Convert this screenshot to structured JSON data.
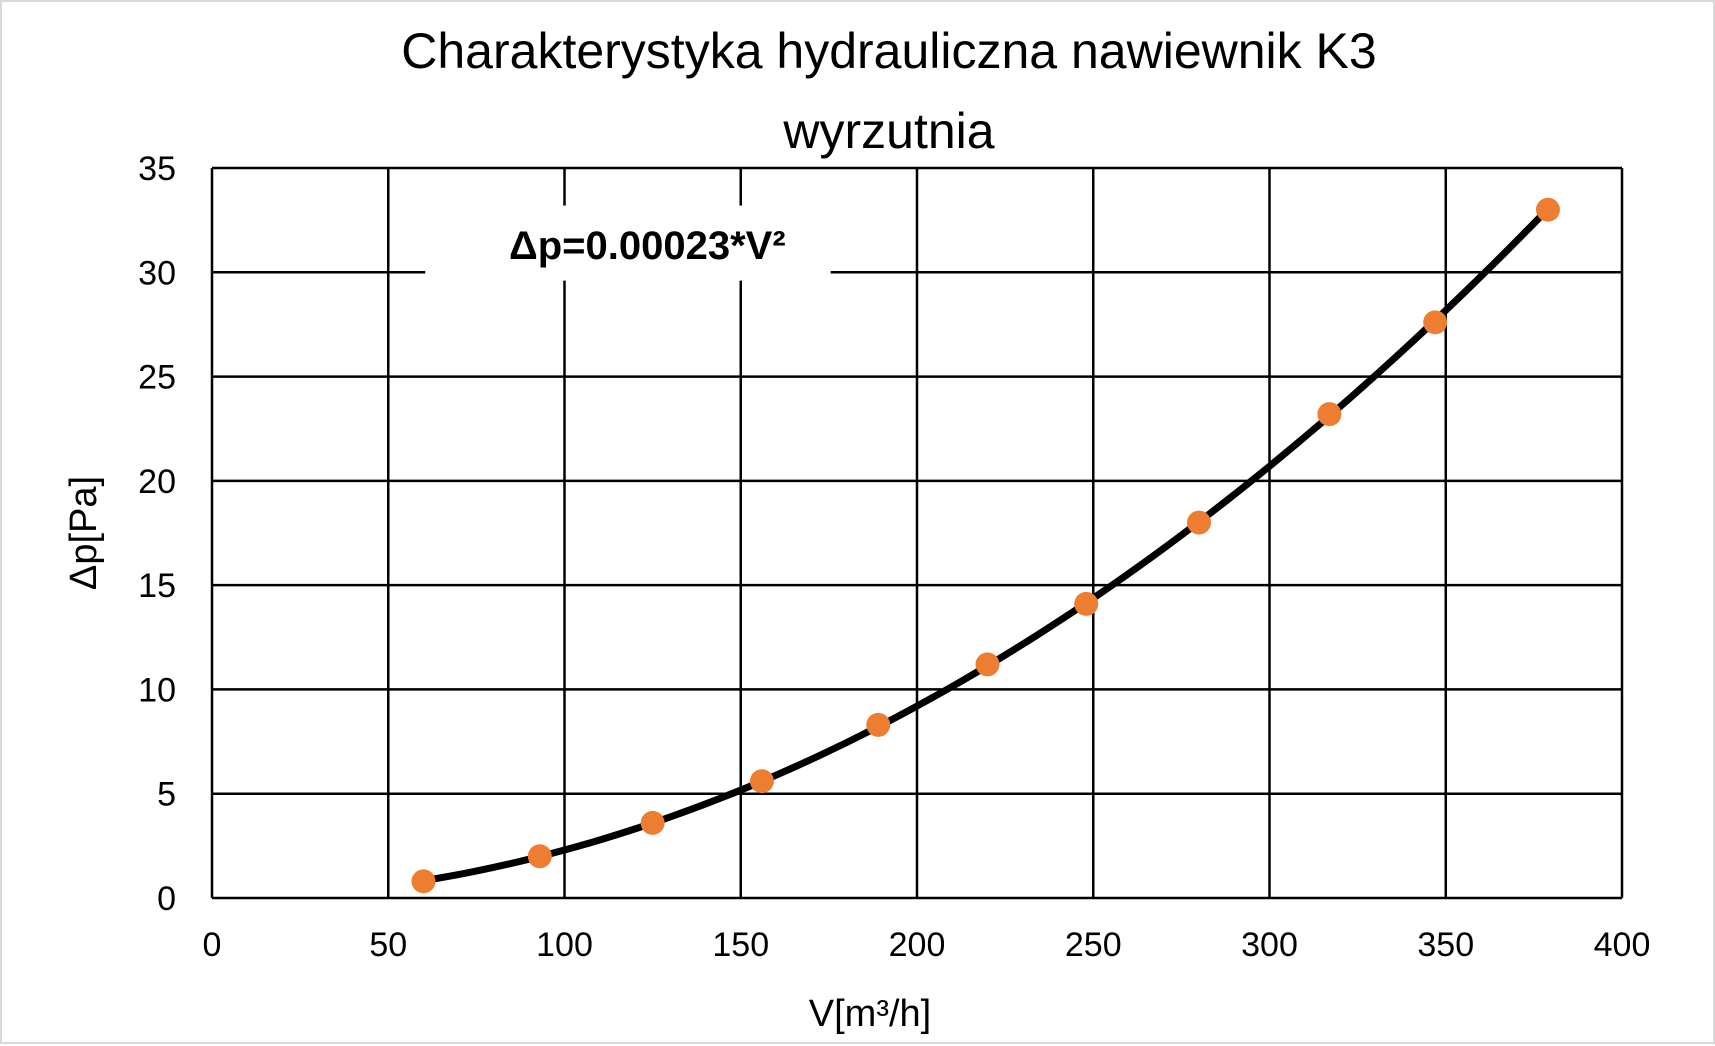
{
  "chart_data": {
    "type": "scatter",
    "title_lines": [
      "Charakterystyka hydrauliczna nawiewnik K3",
      "wyrzutnia"
    ],
    "xlabel": "V[m³/h]",
    "ylabel": "Δp[Pa]",
    "xlim": [
      0,
      400
    ],
    "ylim": [
      0,
      35
    ],
    "x_ticks": [
      0,
      50,
      100,
      150,
      200,
      250,
      300,
      350,
      400
    ],
    "y_ticks": [
      0,
      5,
      10,
      15,
      20,
      25,
      30,
      35
    ],
    "x_tick_labels": [
      "0",
      "50",
      "100",
      "150",
      "200",
      "250",
      "300",
      "350",
      "400"
    ],
    "y_tick_labels": [
      "0",
      "5",
      "10",
      "15",
      "20",
      "25",
      "30",
      "35"
    ],
    "grid": true,
    "legend": false,
    "annotation": "Δp=0.00023*V²",
    "trendline": {
      "type": "power",
      "coefficient": 0.00023,
      "exponent": 2
    },
    "series": [
      {
        "x": [
          60,
          93,
          125,
          156,
          189,
          220,
          248,
          280,
          317,
          347,
          379
        ],
        "y": [
          0.8,
          2.0,
          3.6,
          5.6,
          8.3,
          11.2,
          14.1,
          18.0,
          23.2,
          27.6,
          33.0
        ]
      }
    ],
    "colors": {
      "marker": "#ED7D31",
      "line": "#000000",
      "grid": "#000000",
      "background": "#FFFFFF",
      "border": "#D9D9D9"
    }
  }
}
